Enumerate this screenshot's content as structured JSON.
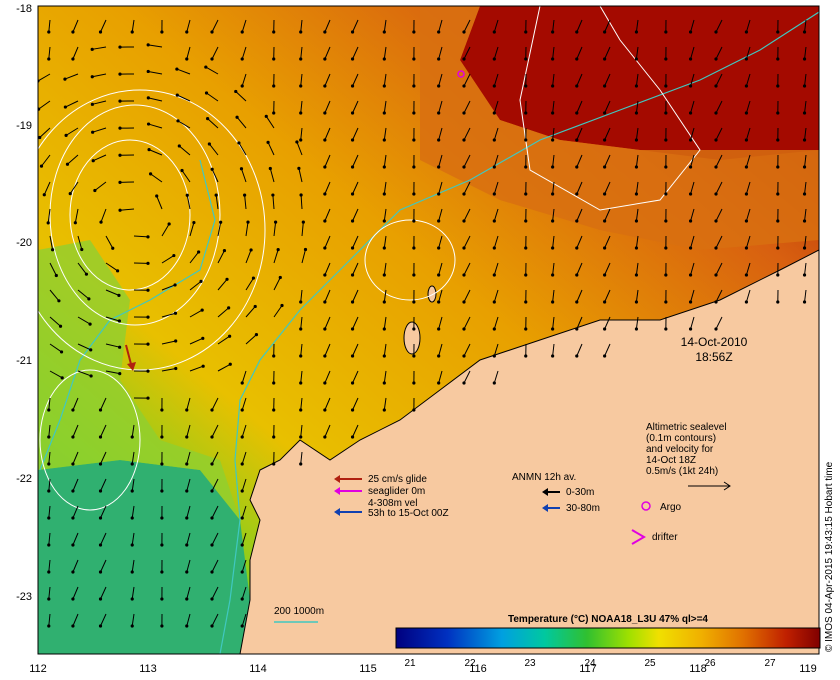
{
  "map": {
    "lon_ticks": [
      "112",
      "113",
      "114",
      "115",
      "116",
      "117",
      "118",
      "119"
    ],
    "lat_ticks": [
      "-18",
      "-19",
      "-20",
      "-21",
      "-22",
      "-23"
    ],
    "date_line1": "14-Oct-2010",
    "date_line2": "18:56Z",
    "credit": "© IMOS 04-Apr-2015 19:43:15 Hobart time",
    "altimetry_lines": [
      "Altimetric sealevel",
      "(0.1m contours)",
      "and velocity for",
      "14-Oct 18Z",
      "0.5m/s (1kt 24h)"
    ],
    "argo_label": "Argo",
    "drifter_label": "drifter",
    "glider_lines": [
      "25 cm/s glide",
      "seaglider 0m",
      "4-308m vel",
      "53h to 15-Oct 00Z"
    ],
    "anmn_title": "ANMN 12h av.",
    "anmn_items": [
      "0-30m",
      "30-80m"
    ],
    "isobath_label": "200  1000m",
    "colorbar_title": "Temperature (°C) NOAA18_L3U 47% ql>=4",
    "colorbar_ticks": [
      "21",
      "22",
      "23",
      "24",
      "25",
      "26",
      "27"
    ],
    "colors": {
      "land": "#f7c9a0",
      "isobath": "#40c8c0",
      "argo": "#e000e0",
      "glider_arrow": "#b02010",
      "blue_arrow": "#1040b0"
    }
  }
}
